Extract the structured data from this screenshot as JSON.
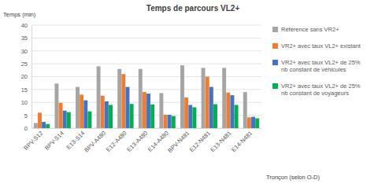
{
  "chart_data": {
    "type": "bar",
    "title": "Temps de parcours VL2+",
    "y_label": "Temps (min)",
    "x_label": "Tronçon (selon O-D)",
    "categories": [
      "BPV-S12",
      "BPV-S14",
      "E13-S14",
      "BPV-A480",
      "E12-A480",
      "E13-A480",
      "E14-A480",
      "BPV-N481",
      "E12-N481",
      "E13-N481",
      "E14-N481"
    ],
    "series": [
      {
        "name": "Référence sans VR2+",
        "color": "#a5a5a5",
        "values": [
          2,
          17.3,
          16,
          24,
          23,
          23,
          13.6,
          24.4,
          23.4,
          23.4,
          14
        ]
      },
      {
        "name": "VR2+ avec taux VL2+ existant",
        "color": "#ed7d31",
        "values": [
          6,
          9.8,
          13,
          12.6,
          21,
          14,
          5.2,
          11.9,
          20,
          13.8,
          4.2
        ]
      },
      {
        "name": "VR2+ avec taux VL2+ de 25% nb constant de véhicules",
        "color": "#4472c4",
        "values": [
          2.4,
          6.8,
          10.8,
          10.4,
          16,
          13.4,
          5.2,
          9,
          16,
          12.8,
          4.4
        ]
      },
      {
        "name": "VR2+ avec taux VL2+ de 25% nb constant de voyageurs",
        "color": "#00b050",
        "values": [
          1.6,
          6.2,
          6.5,
          9,
          9.4,
          9.2,
          4.7,
          8.1,
          9.3,
          9,
          3.8
        ]
      }
    ],
    "ylim": [
      0,
      40
    ],
    "yticks": [
      0,
      5,
      10,
      15,
      20,
      25,
      30,
      35,
      40
    ],
    "grid": true,
    "legend": "right"
  }
}
